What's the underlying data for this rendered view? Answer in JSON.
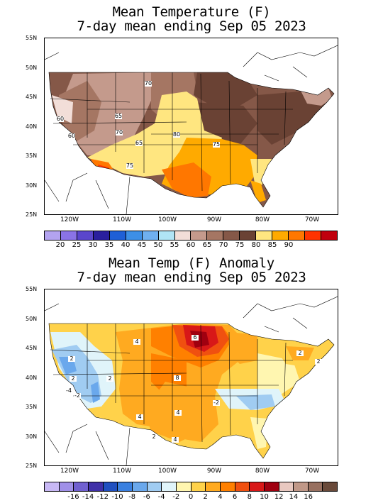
{
  "map1": {
    "title_line1": "Mean Temperature (F)",
    "title_line2": "7-day mean ending Sep 05 2023",
    "lat_labels": [
      "55N",
      "50N",
      "45N",
      "40N",
      "35N",
      "30N",
      "25N"
    ],
    "lon_labels": [
      "120W",
      "110W",
      "100W",
      "90W",
      "80W",
      "70W"
    ],
    "contour_labels": [
      "70",
      "60",
      "65",
      "60",
      "70",
      "65",
      "80",
      "75",
      "75"
    ],
    "colorbar": {
      "colors": [
        "#b3a3f0",
        "#8a73e6",
        "#5a46cc",
        "#2a1f9e",
        "#1f5fd6",
        "#3d8fe6",
        "#6fb0f0",
        "#b0e4f5",
        "#f2ded8",
        "#c49a8c",
        "#a57663",
        "#855848",
        "#6a4234",
        "#ffe680",
        "#ffaa00",
        "#ff7700",
        "#ff3300",
        "#c0000d"
      ],
      "labels": [
        "20",
        "25",
        "30",
        "35",
        "40",
        "45",
        "50",
        "55",
        "60",
        "65",
        "70",
        "75",
        "80",
        "85",
        "90"
      ]
    }
  },
  "map2": {
    "title_line1": "Mean Temp (F) Anomaly",
    "title_line2": "7-day mean ending Sep 05 2023",
    "lat_labels": [
      "55N",
      "50N",
      "45N",
      "40N",
      "35N",
      "30N",
      "25N"
    ],
    "lon_labels": [
      "120W",
      "110W",
      "100W",
      "90W",
      "80W",
      "70W"
    ],
    "contour_labels": [
      "2",
      "2",
      "-2",
      "2",
      "-4",
      "4",
      "6",
      "8",
      "4",
      "2",
      "-2",
      "4",
      "4",
      "2",
      "2"
    ],
    "colorbar": {
      "colors": [
        "#c8b8f5",
        "#a090e8",
        "#7060d0",
        "#4030a8",
        "#2050c0",
        "#3a80e0",
        "#6aa8ec",
        "#a0ccf2",
        "#e0f4fa",
        "#fff6b0",
        "#ffd24a",
        "#ffaa20",
        "#ff8000",
        "#f05010",
        "#d81818",
        "#a00010",
        "#e8c8c0",
        "#c09888",
        "#987060",
        "#6a4a3a"
      ],
      "labels": [
        "-16",
        "-14",
        "-12",
        "-10",
        "-8",
        "-6",
        "-4",
        "-2",
        "0",
        "2",
        "4",
        "6",
        "8",
        "10",
        "12",
        "14",
        "16"
      ]
    }
  }
}
